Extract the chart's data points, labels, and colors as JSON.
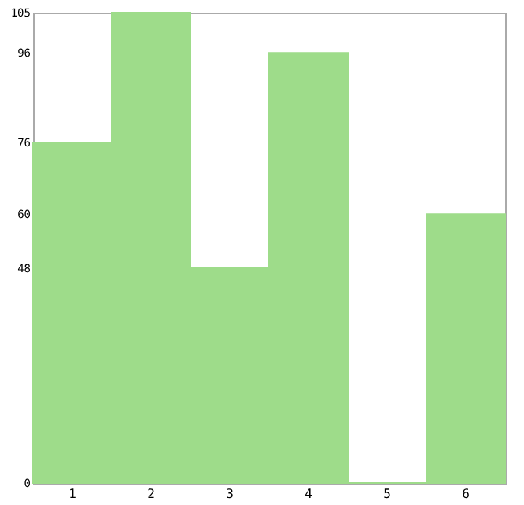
{
  "chart_data": {
    "type": "bar",
    "categories": [
      "1",
      "2",
      "3",
      "4",
      "5",
      "6"
    ],
    "values": [
      76,
      105,
      48,
      96,
      0,
      60
    ],
    "color": "#9edc8a",
    "ylim": [
      0,
      105
    ],
    "yticks": [
      0,
      48,
      60,
      76,
      96,
      105
    ],
    "grid": false
  }
}
